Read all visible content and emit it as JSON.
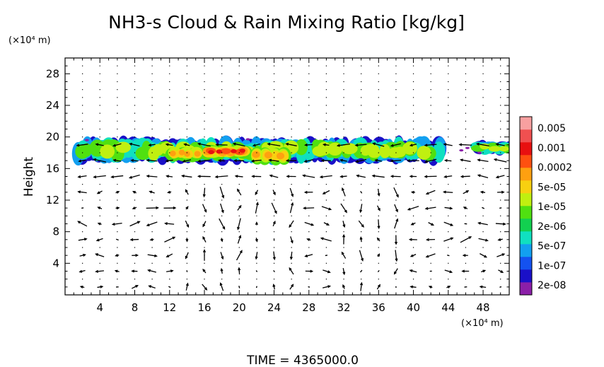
{
  "chart_data": {
    "type": "heatmap",
    "title": "NH3-s Cloud & Rain Mixing Ratio [kg/kg]",
    "ylabel": "Height",
    "y_unit": "(×10⁴ m)",
    "x_unit": "(×10⁴ m)",
    "xlim": [
      0,
      51
    ],
    "ylim": [
      0,
      30
    ],
    "x_ticks": [
      "4",
      "8",
      "12",
      "16",
      "20",
      "24",
      "28",
      "32",
      "36",
      "40",
      "44",
      "48"
    ],
    "y_ticks": [
      "4",
      "8",
      "12",
      "16",
      "20",
      "24",
      "28"
    ],
    "grid": "dotted",
    "colorbar": {
      "scale": "log",
      "labels": [
        "0.005",
        "0.001",
        "0.0002",
        "5e-05",
        "1e-05",
        "2e-06",
        "5e-07",
        "1e-07",
        "2e-08"
      ],
      "colors": [
        "#8b1fa8",
        "#1a10c8",
        "#1452f0",
        "#12a0f0",
        "#10e0c0",
        "#12d050",
        "#50e010",
        "#c0f010",
        "#f8d010",
        "#ffa010",
        "#ff5010",
        "#e81010",
        "#f05050",
        "#f8a0a0"
      ]
    },
    "cloud_layer": {
      "segments": [
        {
          "x": [
            1.5,
            43.5
          ],
          "y": [
            16.8,
            19.8
          ]
        },
        {
          "x": [
            47.5,
            51
          ],
          "y": [
            17.8,
            19.4
          ]
        }
      ],
      "cores": [
        {
          "x": [
            12,
            15.5
          ],
          "y": [
            17.0,
            18.8
          ],
          "level": "0.0002"
        },
        {
          "x": [
            16,
            21
          ],
          "y": [
            17.3,
            19.0
          ],
          "level": "0.001"
        },
        {
          "x": [
            21.5,
            25.5
          ],
          "y": [
            16.5,
            18.8
          ],
          "level": "0.0002"
        }
      ]
    },
    "wind_vectors": "2D velocity arrows on a regular grid (every 2 x 2 units)"
  },
  "time_label": "TIME = 4365000.0"
}
